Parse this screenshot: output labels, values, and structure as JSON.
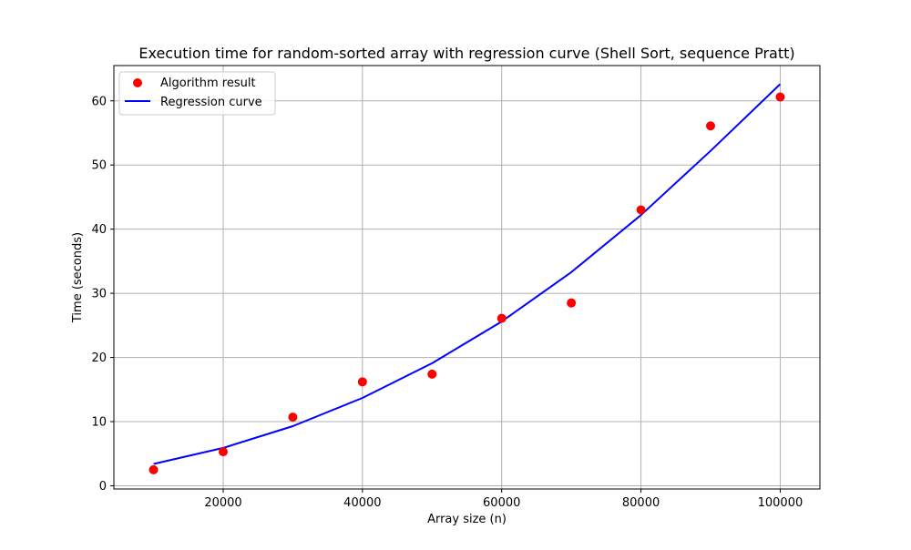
{
  "chart_data": {
    "type": "scatter",
    "title": "Execution time for random-sorted array with regression curve (Shell Sort, sequence Pratt)",
    "xlabel": "Array size (n)",
    "ylabel": "Time (seconds)",
    "xlim": [
      4300,
      105700
    ],
    "ylim": [
      -0.5,
      65.5
    ],
    "xticks": [
      20000,
      40000,
      60000,
      80000,
      100000
    ],
    "yticks": [
      0,
      10,
      20,
      30,
      40,
      50,
      60
    ],
    "grid": true,
    "legend_position": "top-left",
    "series": [
      {
        "name": "Algorithm result",
        "kind": "scatter",
        "color": "#ff0000",
        "x": [
          10000,
          20000,
          30000,
          40000,
          50000,
          60000,
          70000,
          80000,
          90000,
          100000
        ],
        "y": [
          2.5,
          5.3,
          10.7,
          16.2,
          17.4,
          26.1,
          28.5,
          43.0,
          56.1,
          60.6
        ]
      },
      {
        "name": "Regression curve",
        "kind": "line",
        "color": "#0000ff",
        "x": [
          10000,
          20000,
          30000,
          40000,
          50000,
          60000,
          70000,
          80000,
          90000,
          100000
        ],
        "y": [
          3.4,
          5.9,
          9.3,
          13.7,
          19.1,
          25.6,
          33.3,
          42.2,
          52.2,
          62.6
        ]
      }
    ]
  }
}
